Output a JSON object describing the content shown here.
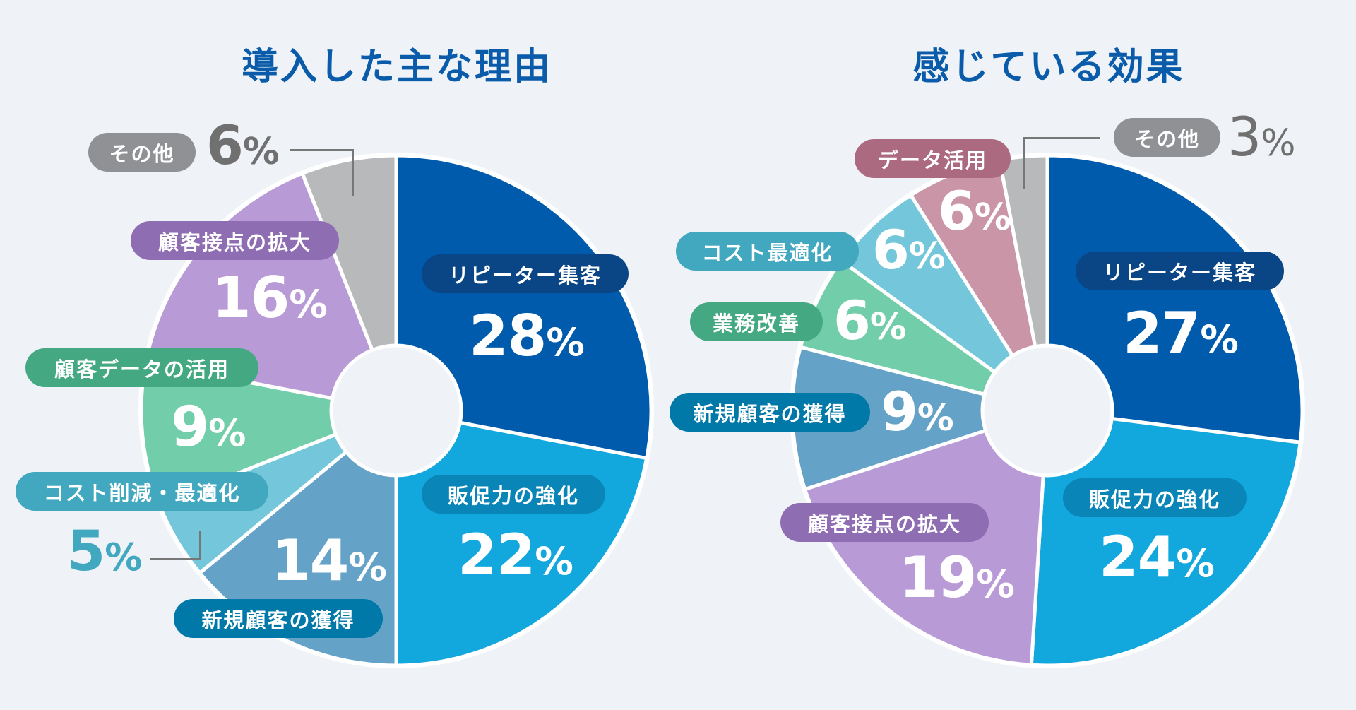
{
  "colors": {
    "background": "#eff3f8",
    "title": "#0a5ba9"
  },
  "chart_data": [
    {
      "type": "pie",
      "title": "導入した主な理由",
      "donut": true,
      "start_angle": "12 o'clock",
      "direction": "clockwise",
      "categories": [
        "リピーター集客",
        "販促力の強化",
        "新規顧客の獲得",
        "コスト削減・最適化",
        "顧客データの活用",
        "顧客接点の拡大",
        "その他"
      ],
      "values": [
        28,
        22,
        14,
        5,
        9,
        16,
        6
      ],
      "unit": "%",
      "slice_colors": [
        "#005bac",
        "#12a8dd",
        "#64a2c7",
        "#74c7da",
        "#72cdaa",
        "#b89bd6",
        "#b8b9bb"
      ],
      "label_colors": [
        "#0a4585",
        "#0a85b8",
        "#0078a8",
        "#41a8bf",
        "#44a883",
        "#8f6db3",
        "#8f9194"
      ]
    },
    {
      "type": "pie",
      "title": "感じている効果",
      "donut": true,
      "start_angle": "12 o'clock",
      "direction": "clockwise",
      "categories": [
        "リピーター集客",
        "販促力の強化",
        "顧客接点の拡大",
        "新規顧客の獲得",
        "業務改善",
        "コスト最適化",
        "データ活用",
        "その他"
      ],
      "values": [
        27,
        24,
        19,
        9,
        6,
        6,
        6,
        3
      ],
      "unit": "%",
      "slice_colors": [
        "#005bac",
        "#12a8dd",
        "#b89bd6",
        "#64a2c7",
        "#72cdaa",
        "#74c7da",
        "#c995a7",
        "#b8b9bb"
      ],
      "label_colors": [
        "#0a4585",
        "#0a85b8",
        "#8f6db3",
        "#0078a8",
        "#44a883",
        "#41a8bf",
        "#ac6a80",
        "#8f9194"
      ]
    }
  ],
  "left": {
    "title": "導入した主な理由",
    "labels": [
      {
        "name": "リピーター集客",
        "value": "28",
        "sym": "%"
      },
      {
        "name": "販促力の強化",
        "value": "22",
        "sym": "%"
      },
      {
        "name": "新規顧客の獲得",
        "value": "14",
        "sym": "%"
      },
      {
        "name": "コスト削減・最適化",
        "value": "5",
        "sym": "%"
      },
      {
        "name": "顧客データの活用",
        "value": "9",
        "sym": "%"
      },
      {
        "name": "顧客接点の拡大",
        "value": "16",
        "sym": "%"
      },
      {
        "name": "その他",
        "value": "6",
        "sym": "%"
      }
    ]
  },
  "right": {
    "title": "感じている効果",
    "labels": [
      {
        "name": "リピーター集客",
        "value": "27",
        "sym": "%"
      },
      {
        "name": "販促力の強化",
        "value": "24",
        "sym": "%"
      },
      {
        "name": "顧客接点の拡大",
        "value": "19",
        "sym": "%"
      },
      {
        "name": "新規顧客の獲得",
        "value": "9",
        "sym": "%"
      },
      {
        "name": "業務改善",
        "value": "6",
        "sym": "%"
      },
      {
        "name": "コスト最適化",
        "value": "6",
        "sym": "%"
      },
      {
        "name": "データ活用",
        "value": "6",
        "sym": "%"
      },
      {
        "name": "その他",
        "value": "3",
        "sym": "%"
      }
    ]
  }
}
